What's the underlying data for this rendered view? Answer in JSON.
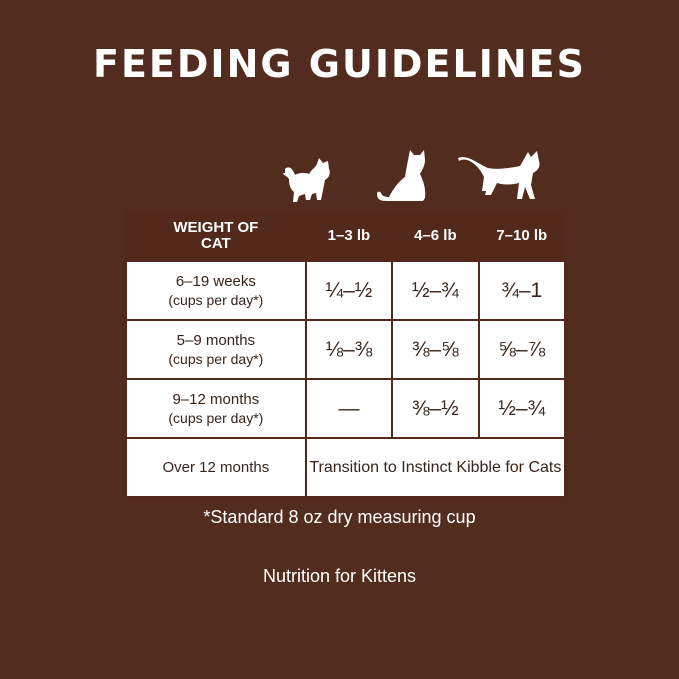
{
  "title": "FEEDING GUIDELINES",
  "table": {
    "headers": [
      "WEIGHT OF CAT",
      "1–3 lb",
      "4–6 lb",
      "7–10 lb"
    ],
    "rows": [
      {
        "label": "6–19 weeks",
        "sub": "(cups per day*)",
        "values": [
          "¼–½",
          "½–¾",
          "¾–1"
        ]
      },
      {
        "label": "5–9 months",
        "sub": "(cups per day*)",
        "values": [
          "⅛–⅜",
          "⅜–⅝",
          "⅝–⅞"
        ]
      },
      {
        "label": "9–12 months",
        "sub": "(cups per day*)",
        "values": [
          "—",
          "⅜–½",
          "½–¾"
        ]
      },
      {
        "label": "Over 12 months",
        "span": "Transition to Instinct Kibble for Cats"
      }
    ]
  },
  "note": "*Standard 8 oz dry measuring cup",
  "footer": "Nutrition for Kittens",
  "icons": [
    "kitten-icon",
    "sitting-cat-icon",
    "standing-cat-icon"
  ]
}
